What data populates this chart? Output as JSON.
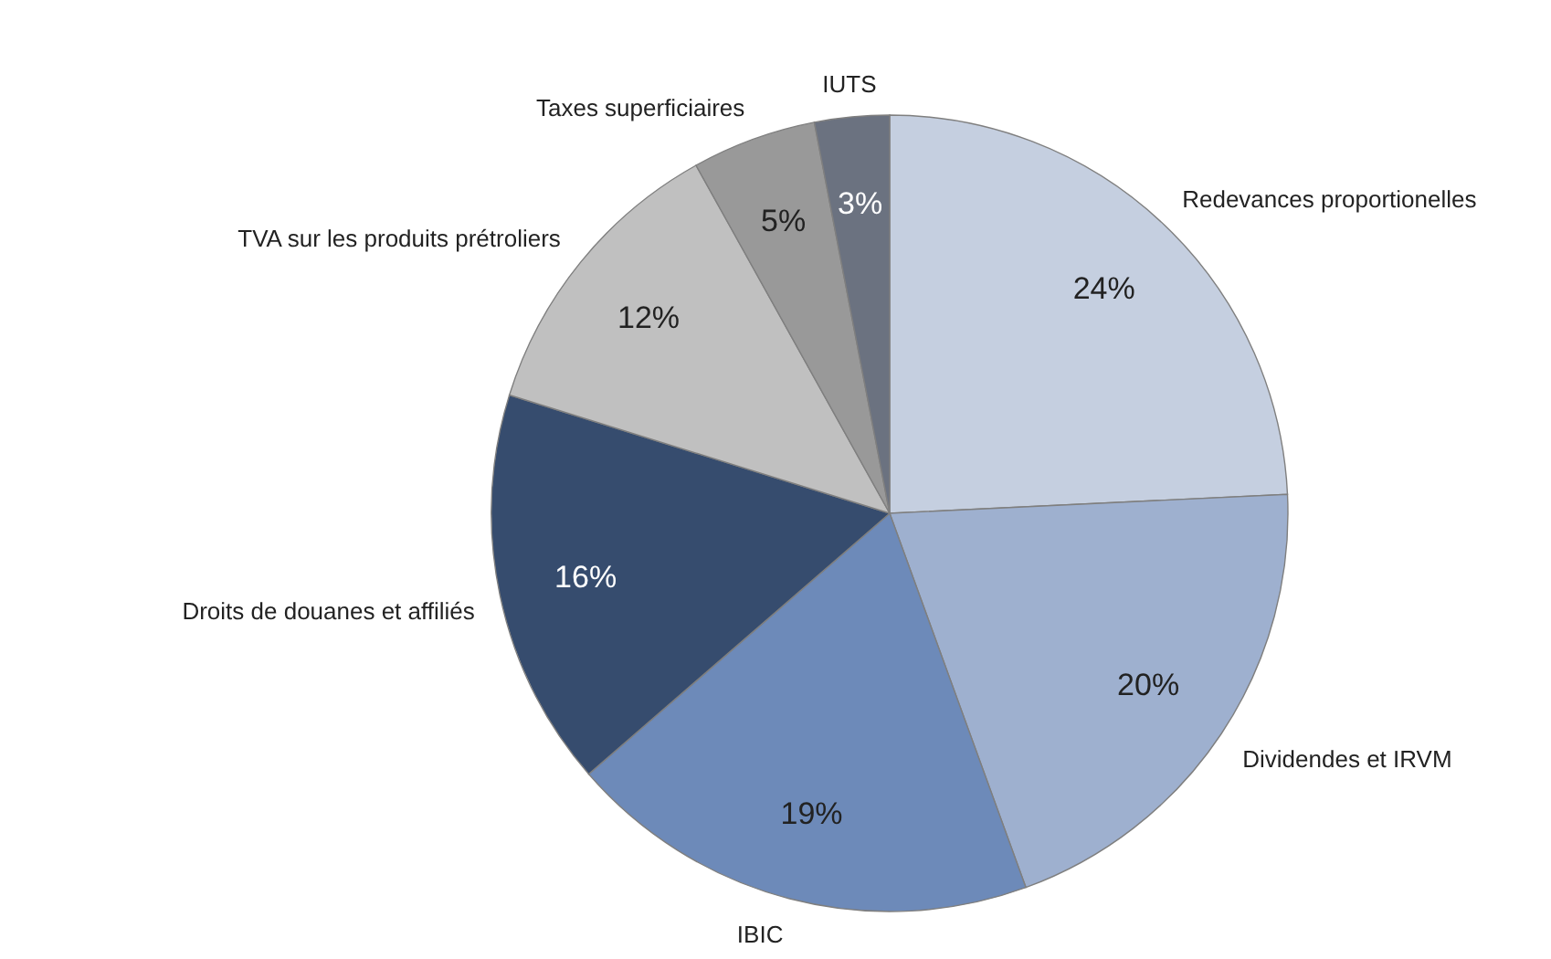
{
  "chart_data": {
    "type": "pie",
    "categories": [
      "Redevances proportionelles",
      "Dividendes et IRVM",
      "IBIC",
      "Droits de douanes et affiliés",
      "TVA sur les produits prétroliers",
      "Taxes superficiaires",
      "IUTS"
    ],
    "values": [
      24,
      20,
      19,
      16,
      12,
      5,
      3
    ],
    "value_labels": [
      "24%",
      "20%",
      "19%",
      "16%",
      "12%",
      "5%",
      "3%"
    ],
    "colors": [
      "#c5cfe0",
      "#9eb0cf",
      "#6d8ab9",
      "#364c6e",
      "#c0c0c0",
      "#999999",
      "#6b7280"
    ]
  }
}
